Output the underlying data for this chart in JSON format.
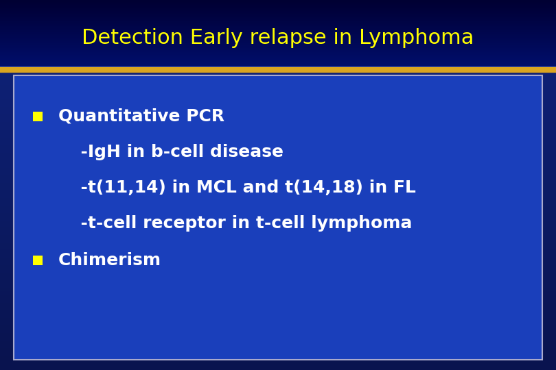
{
  "title": "Detection Early relapse in Lymphoma",
  "title_color": "#FFFF00",
  "title_fontsize": 22,
  "title_bold": false,
  "bg_dark": "#000033",
  "bg_mid": "#001080",
  "bg_bottom": "#0a1a6b",
  "separator_color_gold": "#DAA520",
  "separator_color_blue": "#3355cc",
  "box_bg_color": "#1a3fbb",
  "box_border_color": "#aaaacc",
  "bullet_color": "#FFFF00",
  "bullet1_text": "Quantitative PCR",
  "bullet1_color": "#FFFFFF",
  "sub1_text": "  -IgH in b-cell disease",
  "sub1_color": "#FFFFFF",
  "sub2_text": "  -t(11,14) in MCL and t(14,18) in FL",
  "sub2_color": "#FFFFFF",
  "sub3_text": "  -t-cell receptor in t-cell lymphoma",
  "sub3_color": "#FFFFFF",
  "bullet2_text": "Chimerism",
  "bullet2_color": "#FFFFFF",
  "text_fontsize": 18,
  "figsize": [
    8.1,
    5.4
  ],
  "dpi": 100
}
